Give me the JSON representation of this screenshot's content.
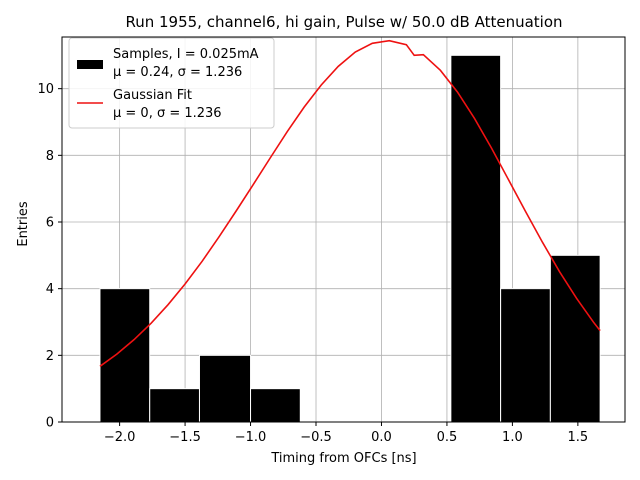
{
  "chart_data": {
    "type": "bar",
    "title": "Run 1955, channel6, hi gain, Pulse w/ 50.0 dB Attenuation",
    "xlabel": "Timing from OFCs [ns]",
    "ylabel": "Entries",
    "xlim": [
      -2.44,
      1.86
    ],
    "ylim": [
      0,
      11.55
    ],
    "xticks": [
      -2.0,
      -1.5,
      -1.0,
      -0.5,
      0.0,
      0.5,
      1.0,
      1.5
    ],
    "xtick_labels": [
      "−2.0",
      "−1.5",
      "−1.0",
      "−0.5",
      "0.0",
      "0.5",
      "1.0",
      "1.5"
    ],
    "yticks": [
      0,
      2,
      4,
      6,
      8,
      10
    ],
    "ytick_labels": [
      "0",
      "2",
      "4",
      "6",
      "8",
      "10"
    ],
    "grid": true,
    "legend_position": "top-left",
    "bins": [
      {
        "x0": -2.15,
        "x1": -1.77,
        "count": 4
      },
      {
        "x0": -1.77,
        "x1": -1.39,
        "count": 1
      },
      {
        "x0": -1.39,
        "x1": -1.0,
        "count": 2
      },
      {
        "x0": -1.0,
        "x1": -0.62,
        "count": 1
      },
      {
        "x0": 0.53,
        "x1": 0.91,
        "count": 11
      },
      {
        "x0": 0.91,
        "x1": 1.29,
        "count": 4
      },
      {
        "x0": 1.29,
        "x1": 1.67,
        "count": 5
      }
    ],
    "series": [
      {
        "name": "Samples, I = 0.025mA",
        "name_line2": "μ = 0.24, σ = 1.236",
        "kind": "histogram",
        "color": "#000000"
      },
      {
        "name": "Gaussian Fit",
        "name_line2": "μ = 0, σ = 1.236",
        "kind": "line",
        "color": "#ee1111",
        "x": [
          -2.15,
          -2.02,
          -1.89,
          -1.76,
          -1.63,
          -1.5,
          -1.37,
          -1.24,
          -1.11,
          -0.98,
          -0.85,
          -0.72,
          -0.59,
          -0.46,
          -0.33,
          -0.2,
          -0.07,
          0.06,
          0.19,
          0.25,
          0.32,
          0.45,
          0.58,
          0.71,
          0.84,
          0.97,
          1.1,
          1.23,
          1.36,
          1.49,
          1.62,
          1.67
        ],
        "y": [
          1.67,
          2.04,
          2.47,
          2.96,
          3.52,
          4.14,
          4.82,
          5.56,
          6.33,
          7.12,
          7.92,
          8.71,
          9.45,
          10.11,
          10.67,
          11.1,
          11.36,
          11.44,
          11.32,
          11.0,
          11.02,
          10.55,
          9.9,
          9.11,
          8.22,
          7.27,
          6.32,
          5.39,
          4.51,
          3.71,
          2.99,
          2.74
        ]
      }
    ]
  }
}
